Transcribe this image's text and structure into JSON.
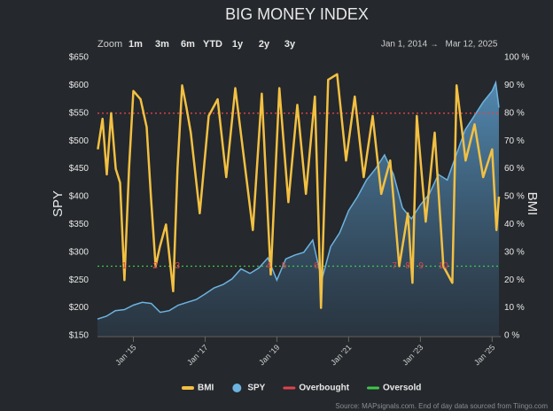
{
  "range_selector": {
    "zoom_label": "Zoom",
    "buttons": [
      "1m",
      "3m",
      "6m",
      "YTD",
      "1y",
      "2y",
      "3y"
    ],
    "from": "Jan 1, 2014",
    "arrow": "→",
    "to": "Mar 12, 2025"
  },
  "chart_data": {
    "type": "dual-axis-line-area",
    "title": "BIG MONEY INDEX",
    "source": "Source: MAPsignals.com. End of day data sourced from Tiingo.com",
    "y_label": "SPY",
    "y2_label": "BMI",
    "xlim": [
      2014,
      2025.19
    ],
    "xticks": [
      {
        "value": 2015,
        "label": "Jan '15"
      },
      {
        "value": 2017,
        "label": "Jan '17"
      },
      {
        "value": 2019,
        "label": "Jan '19"
      },
      {
        "value": 2021,
        "label": "Jan '21"
      },
      {
        "value": 2023,
        "label": "Jan '23"
      },
      {
        "value": 2025,
        "label": "Jan '25"
      }
    ],
    "ylim": [
      150,
      650
    ],
    "yticks": [
      {
        "value": 150,
        "label": "$150"
      },
      {
        "value": 200,
        "label": "$200"
      },
      {
        "value": 250,
        "label": "$250"
      },
      {
        "value": 300,
        "label": "$300"
      },
      {
        "value": 350,
        "label": "$350"
      },
      {
        "value": 400,
        "label": "$400"
      },
      {
        "value": 450,
        "label": "$450"
      },
      {
        "value": 500,
        "label": "$500"
      },
      {
        "value": 550,
        "label": "$550"
      },
      {
        "value": 600,
        "label": "$600"
      },
      {
        "value": 650,
        "label": "$650"
      }
    ],
    "y2lim": [
      0,
      100
    ],
    "y2ticks": [
      {
        "value": 0,
        "label": "0 %"
      },
      {
        "value": 10,
        "label": "10 %"
      },
      {
        "value": 20,
        "label": "20 %"
      },
      {
        "value": 30,
        "label": "30 %"
      },
      {
        "value": 40,
        "label": "40 %"
      },
      {
        "value": 50,
        "label": "50 %"
      },
      {
        "value": 60,
        "label": "60 %"
      },
      {
        "value": 70,
        "label": "70 %"
      },
      {
        "value": 80,
        "label": "80 %"
      },
      {
        "value": 90,
        "label": "90 %"
      },
      {
        "value": 100,
        "label": "100 %"
      }
    ],
    "grid": false,
    "series": [
      {
        "name": "BMI",
        "color": "#f2c042",
        "axis": "y2",
        "kind": "line",
        "x": [
          2014.01,
          2014.14,
          2014.26,
          2014.38,
          2014.51,
          2014.63,
          2014.75,
          2014.88,
          2015.0,
          2015.2,
          2015.37,
          2015.49,
          2015.62,
          2015.74,
          2015.91,
          2016.11,
          2016.23,
          2016.36,
          2016.48,
          2016.6,
          2016.85,
          2017.1,
          2017.35,
          2017.59,
          2017.84,
          2018.09,
          2018.33,
          2018.58,
          2018.83,
          2019.07,
          2019.32,
          2019.57,
          2019.81,
          2020.06,
          2020.23,
          2020.43,
          2020.68,
          2020.93,
          2021.17,
          2021.42,
          2021.67,
          2021.91,
          2022.16,
          2022.41,
          2022.65,
          2022.78,
          2022.9,
          2023.15,
          2023.4,
          2023.64,
          2023.89,
          2024.01,
          2024.26,
          2024.51,
          2024.75,
          2025.0,
          2025.12,
          2025.19
        ],
        "values": [
          67,
          78,
          58,
          80,
          60,
          55,
          20,
          60,
          88,
          85,
          75,
          50,
          25,
          32,
          40,
          16,
          60,
          90,
          82,
          73,
          44,
          79,
          85,
          57,
          89,
          63,
          38,
          87,
          22,
          89,
          48,
          83,
          51,
          86,
          10,
          92,
          94,
          63,
          86,
          57,
          79,
          51,
          63,
          25,
          44,
          19,
          79,
          41,
          73,
          25,
          19,
          90,
          63,
          76,
          57,
          67,
          38,
          50
        ]
      },
      {
        "name": "SPY",
        "color": "#6db3e0",
        "axis": "y",
        "kind": "area",
        "x": [
          2014.0,
          2014.25,
          2014.5,
          2014.75,
          2015.0,
          2015.25,
          2015.5,
          2015.75,
          2016.0,
          2016.25,
          2016.5,
          2016.75,
          2017.0,
          2017.25,
          2017.5,
          2017.75,
          2018.0,
          2018.25,
          2018.5,
          2018.75,
          2019.0,
          2019.25,
          2019.5,
          2019.75,
          2020.0,
          2020.25,
          2020.5,
          2020.75,
          2021.0,
          2021.25,
          2021.5,
          2021.75,
          2022.0,
          2022.25,
          2022.5,
          2022.75,
          2023.0,
          2023.25,
          2023.5,
          2023.75,
          2024.0,
          2024.25,
          2024.5,
          2024.75,
          2025.0,
          2025.1,
          2025.19
        ],
        "values": [
          180,
          185,
          195,
          197,
          205,
          210,
          208,
          192,
          195,
          205,
          210,
          215,
          225,
          236,
          242,
          252,
          270,
          262,
          272,
          290,
          250,
          288,
          295,
          300,
          322,
          250,
          310,
          335,
          375,
          400,
          430,
          450,
          475,
          440,
          380,
          360,
          385,
          405,
          440,
          430,
          475,
          520,
          545,
          570,
          590,
          605,
          560
        ]
      }
    ],
    "reference_lines": [
      {
        "name": "Overbought",
        "value": 80,
        "color": "#e0434b",
        "axis": "y2"
      },
      {
        "name": "Oversold",
        "value": 25,
        "color": "#3cc84a",
        "axis": "y2"
      }
    ],
    "annotations": [
      {
        "label": "1",
        "x": 2014.75
      },
      {
        "label": "2",
        "x": 2015.61
      },
      {
        "label": "3",
        "x": 2016.23
      },
      {
        "label": "4",
        "x": 2018.77
      },
      {
        "label": "5",
        "x": 2019.2
      },
      {
        "label": "6",
        "x": 2020.1
      },
      {
        "label": "7",
        "x": 2022.28
      },
      {
        "label": "8",
        "x": 2022.65
      },
      {
        "label": "9",
        "x": 2023.02
      },
      {
        "label": "10",
        "x": 2023.64
      }
    ],
    "annotation_color": "#e0434b"
  }
}
